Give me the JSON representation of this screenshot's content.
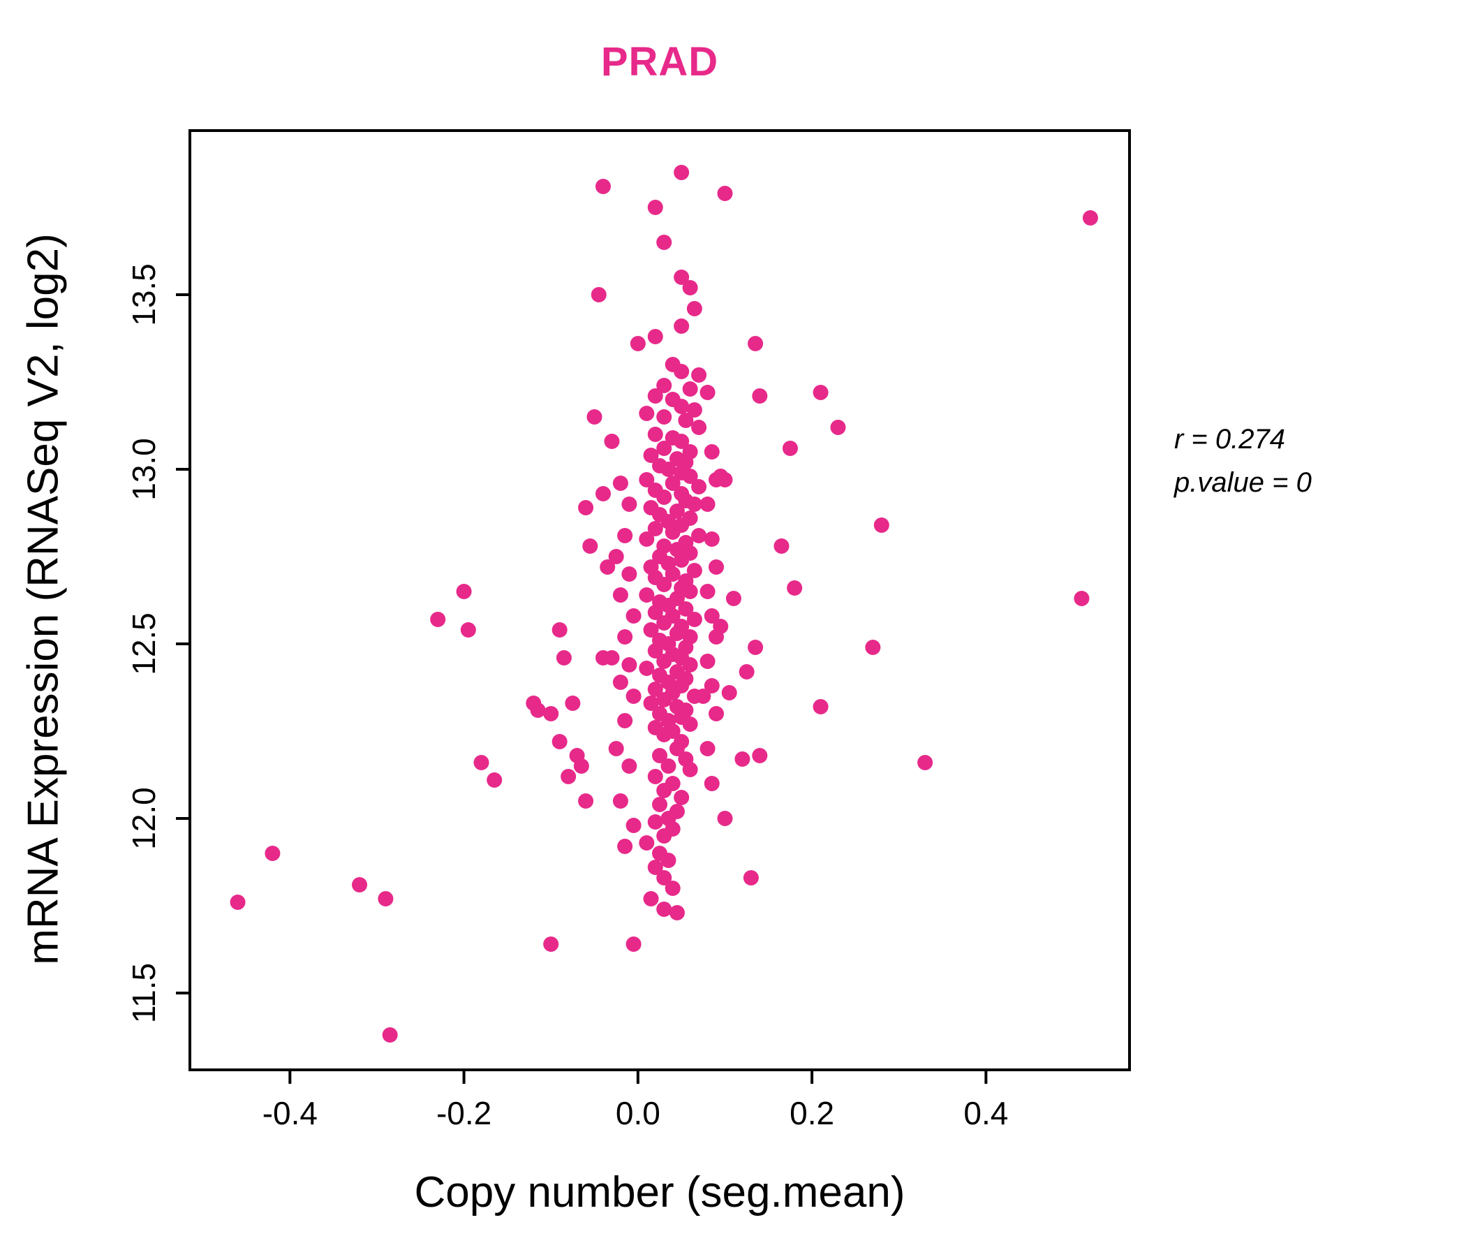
{
  "chart_data": {
    "type": "scatter",
    "title": "PRAD",
    "title_color": "#E7298A",
    "point_color": "#E7298A",
    "xlabel": "Copy number (seg.mean)",
    "ylabel": "mRNA Expression (RNASeq V2, log2)",
    "xlim": [
      -0.515,
      0.565
    ],
    "ylim": [
      11.28,
      13.97
    ],
    "grid": "off",
    "legend": "none",
    "xticks": {
      "values": [
        -0.4,
        -0.2,
        0.0,
        0.2,
        0.4
      ],
      "labels": [
        "-0.4",
        "-0.2",
        "0.0",
        "0.2",
        "0.4"
      ]
    },
    "yticks": {
      "values": [
        11.5,
        12.0,
        12.5,
        13.0,
        13.5
      ],
      "labels": [
        "11.5",
        "12.0",
        "12.5",
        "13.0",
        "13.5"
      ]
    },
    "annotation": {
      "line1": "r = 0.274",
      "line2": "p.value = 0"
    },
    "points": [
      [
        -0.46,
        11.76
      ],
      [
        -0.42,
        11.9
      ],
      [
        -0.32,
        11.81
      ],
      [
        -0.29,
        11.77
      ],
      [
        -0.285,
        11.38
      ],
      [
        -0.23,
        12.57
      ],
      [
        -0.2,
        12.65
      ],
      [
        -0.195,
        12.54
      ],
      [
        -0.18,
        12.16
      ],
      [
        -0.165,
        12.11
      ],
      [
        -0.12,
        12.33
      ],
      [
        -0.115,
        12.31
      ],
      [
        -0.1,
        12.3
      ],
      [
        -0.1,
        11.64
      ],
      [
        -0.09,
        12.54
      ],
      [
        -0.085,
        12.46
      ],
      [
        -0.09,
        12.22
      ],
      [
        -0.08,
        12.12
      ],
      [
        -0.075,
        12.33
      ],
      [
        -0.07,
        12.18
      ],
      [
        -0.06,
        12.89
      ],
      [
        -0.065,
        12.15
      ],
      [
        -0.06,
        12.05
      ],
      [
        -0.055,
        12.78
      ],
      [
        -0.05,
        13.15
      ],
      [
        -0.04,
        13.81
      ],
      [
        -0.045,
        13.5
      ],
      [
        -0.04,
        12.93
      ],
      [
        -0.04,
        12.46
      ],
      [
        -0.035,
        12.72
      ],
      [
        0.05,
        13.85
      ],
      [
        0.02,
        13.75
      ],
      [
        0.1,
        13.79
      ],
      [
        0.03,
        13.65
      ],
      [
        0.05,
        13.55
      ],
      [
        0.06,
        13.52
      ],
      [
        0.065,
        13.46
      ],
      [
        0.05,
        13.41
      ],
      [
        0.0,
        13.36
      ],
      [
        0.135,
        13.36
      ],
      [
        0.07,
        13.27
      ],
      [
        0.14,
        13.21
      ],
      [
        0.21,
        13.22
      ],
      [
        0.23,
        13.12
      ],
      [
        0.175,
        13.06
      ],
      [
        0.165,
        12.78
      ],
      [
        0.18,
        12.66
      ],
      [
        0.21,
        12.32
      ],
      [
        0.28,
        12.84
      ],
      [
        0.27,
        12.49
      ],
      [
        0.33,
        12.16
      ],
      [
        0.51,
        12.63
      ],
      [
        0.52,
        13.72
      ],
      [
        0.135,
        12.49
      ],
      [
        0.125,
        12.42
      ],
      [
        0.12,
        12.17
      ],
      [
        0.13,
        11.83
      ],
      [
        0.1,
        12.0
      ],
      [
        0.105,
        12.36
      ],
      [
        0.11,
        12.63
      ],
      [
        0.095,
        12.98
      ],
      [
        0.1,
        12.97
      ],
      [
        0.14,
        12.18
      ],
      [
        0.02,
        13.38
      ],
      [
        0.04,
        13.3
      ],
      [
        0.05,
        13.28
      ],
      [
        0.03,
        13.24
      ],
      [
        0.06,
        13.23
      ],
      [
        0.02,
        13.21
      ],
      [
        0.04,
        13.2
      ],
      [
        0.05,
        13.18
      ],
      [
        0.065,
        13.17
      ],
      [
        0.01,
        13.16
      ],
      [
        0.03,
        13.15
      ],
      [
        0.055,
        13.14
      ],
      [
        0.07,
        13.12
      ],
      [
        0.02,
        13.1
      ],
      [
        0.04,
        13.09
      ],
      [
        0.05,
        13.08
      ],
      [
        0.03,
        13.06
      ],
      [
        0.06,
        13.05
      ],
      [
        0.015,
        13.04
      ],
      [
        0.045,
        13.03
      ],
      [
        0.055,
        13.02
      ],
      [
        0.025,
        13.01
      ],
      [
        0.035,
        13.0
      ],
      [
        0.05,
        12.99
      ],
      [
        0.06,
        12.98
      ],
      [
        0.01,
        12.97
      ],
      [
        0.04,
        12.96
      ],
      [
        0.07,
        12.95
      ],
      [
        0.02,
        12.94
      ],
      [
        0.05,
        12.93
      ],
      [
        0.03,
        12.92
      ],
      [
        0.055,
        12.91
      ],
      [
        0.065,
        12.9
      ],
      [
        0.015,
        12.89
      ],
      [
        0.045,
        12.88
      ],
      [
        0.025,
        12.87
      ],
      [
        0.06,
        12.86
      ],
      [
        0.035,
        12.85
      ],
      [
        0.05,
        12.84
      ],
      [
        0.02,
        12.83
      ],
      [
        0.04,
        12.82
      ],
      [
        0.07,
        12.81
      ],
      [
        0.01,
        12.8
      ],
      [
        0.055,
        12.79
      ],
      [
        0.03,
        12.78
      ],
      [
        0.045,
        12.77
      ],
      [
        0.06,
        12.76
      ],
      [
        0.025,
        12.75
      ],
      [
        0.05,
        12.74
      ],
      [
        0.035,
        12.73
      ],
      [
        0.015,
        12.72
      ],
      [
        0.065,
        12.71
      ],
      [
        0.04,
        12.7
      ],
      [
        0.02,
        12.69
      ],
      [
        0.055,
        12.68
      ],
      [
        0.03,
        12.67
      ],
      [
        0.05,
        12.66
      ],
      [
        0.06,
        12.65
      ],
      [
        0.01,
        12.64
      ],
      [
        0.045,
        12.63
      ],
      [
        0.025,
        12.62
      ],
      [
        0.035,
        12.61
      ],
      [
        0.055,
        12.6
      ],
      [
        0.02,
        12.59
      ],
      [
        0.04,
        12.58
      ],
      [
        0.065,
        12.57
      ],
      [
        0.03,
        12.56
      ],
      [
        0.05,
        12.55
      ],
      [
        0.015,
        12.54
      ],
      [
        0.045,
        12.53
      ],
      [
        0.06,
        12.52
      ],
      [
        0.025,
        12.51
      ],
      [
        0.035,
        12.5
      ],
      [
        0.055,
        12.49
      ],
      [
        0.02,
        12.48
      ],
      [
        0.04,
        12.47
      ],
      [
        0.05,
        12.46
      ],
      [
        0.03,
        12.45
      ],
      [
        0.06,
        12.44
      ],
      [
        0.01,
        12.43
      ],
      [
        0.045,
        12.42
      ],
      [
        0.025,
        12.41
      ],
      [
        0.055,
        12.4
      ],
      [
        0.035,
        12.39
      ],
      [
        0.05,
        12.38
      ],
      [
        0.02,
        12.37
      ],
      [
        0.04,
        12.36
      ],
      [
        0.065,
        12.35
      ],
      [
        0.03,
        12.34
      ],
      [
        0.015,
        12.33
      ],
      [
        0.045,
        12.32
      ],
      [
        0.055,
        12.31
      ],
      [
        0.025,
        12.3
      ],
      [
        0.05,
        12.29
      ],
      [
        0.035,
        12.28
      ],
      [
        0.06,
        12.27
      ],
      [
        0.02,
        12.26
      ],
      [
        0.04,
        12.25
      ],
      [
        0.03,
        12.24
      ],
      [
        0.05,
        12.22
      ],
      [
        0.045,
        12.2
      ],
      [
        0.025,
        12.18
      ],
      [
        0.055,
        12.17
      ],
      [
        0.035,
        12.15
      ],
      [
        0.06,
        12.14
      ],
      [
        0.02,
        12.12
      ],
      [
        0.04,
        12.1
      ],
      [
        0.03,
        12.08
      ],
      [
        0.05,
        12.06
      ],
      [
        0.025,
        12.04
      ],
      [
        0.045,
        12.02
      ],
      [
        0.035,
        12.0
      ],
      [
        0.02,
        11.99
      ],
      [
        0.04,
        11.97
      ],
      [
        0.03,
        11.95
      ],
      [
        0.01,
        11.93
      ],
      [
        0.025,
        11.9
      ],
      [
        0.035,
        11.88
      ],
      [
        0.02,
        11.86
      ],
      [
        0.03,
        11.83
      ],
      [
        0.04,
        11.8
      ],
      [
        0.015,
        11.77
      ],
      [
        0.03,
        11.74
      ],
      [
        0.045,
        11.73
      ],
      [
        -0.005,
        11.64
      ],
      [
        -0.03,
        13.08
      ],
      [
        -0.02,
        12.96
      ],
      [
        -0.01,
        12.9
      ],
      [
        -0.015,
        12.81
      ],
      [
        -0.025,
        12.75
      ],
      [
        -0.01,
        12.7
      ],
      [
        -0.02,
        12.64
      ],
      [
        -0.005,
        12.58
      ],
      [
        -0.015,
        12.52
      ],
      [
        -0.03,
        12.46
      ],
      [
        -0.01,
        12.44
      ],
      [
        -0.02,
        12.39
      ],
      [
        -0.005,
        12.35
      ],
      [
        -0.015,
        12.28
      ],
      [
        -0.025,
        12.2
      ],
      [
        -0.01,
        12.15
      ],
      [
        -0.02,
        12.05
      ],
      [
        -0.005,
        11.98
      ],
      [
        -0.015,
        11.92
      ],
      [
        0.08,
        13.22
      ],
      [
        0.085,
        13.05
      ],
      [
        0.09,
        12.97
      ],
      [
        0.08,
        12.9
      ],
      [
        0.085,
        12.8
      ],
      [
        0.09,
        12.72
      ],
      [
        0.08,
        12.65
      ],
      [
        0.085,
        12.58
      ],
      [
        0.09,
        12.52
      ],
      [
        0.08,
        12.45
      ],
      [
        0.085,
        12.38
      ],
      [
        0.09,
        12.3
      ],
      [
        0.08,
        12.2
      ],
      [
        0.085,
        12.1
      ],
      [
        0.095,
        12.55
      ],
      [
        0.075,
        12.35
      ]
    ]
  }
}
